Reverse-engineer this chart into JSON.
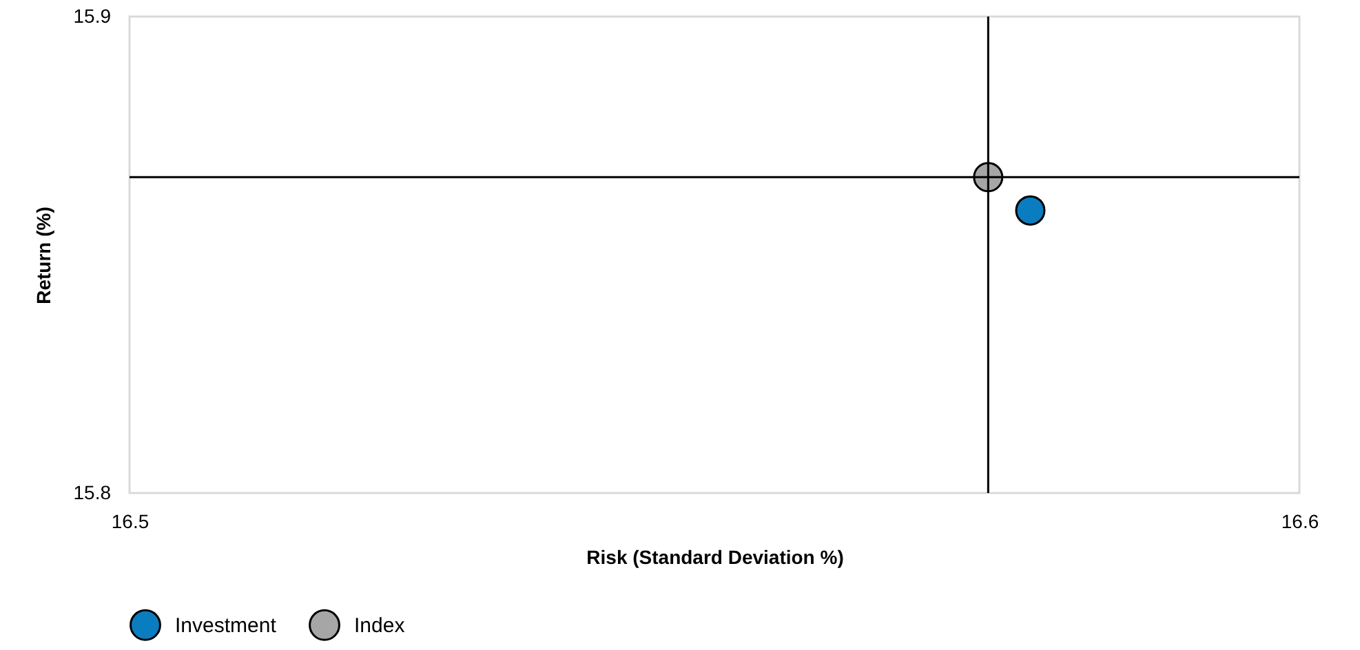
{
  "chart_data": {
    "type": "scatter",
    "xlabel": "Risk (Standard Deviation %)",
    "ylabel": "Return (%)",
    "xlim": [
      16.5,
      16.6
    ],
    "ylim": [
      15.8,
      15.9
    ],
    "xticks": [
      16.5,
      16.6
    ],
    "yticks": [
      15.8,
      15.9
    ],
    "series": [
      {
        "name": "Investment",
        "color": "#0a7dc0",
        "x": [
          16.577
        ],
        "values": [
          15.8593
        ]
      },
      {
        "name": "Index",
        "color": "#a6a6a6",
        "x": [
          16.5734
        ],
        "values": [
          15.8663
        ]
      }
    ],
    "ref_lines": [
      {
        "axis": "x",
        "value": 16.5734,
        "color": "#000000"
      },
      {
        "axis": "y",
        "value": 15.8663,
        "color": "#000000"
      }
    ],
    "legend": "bottom left",
    "marker": "circle"
  }
}
